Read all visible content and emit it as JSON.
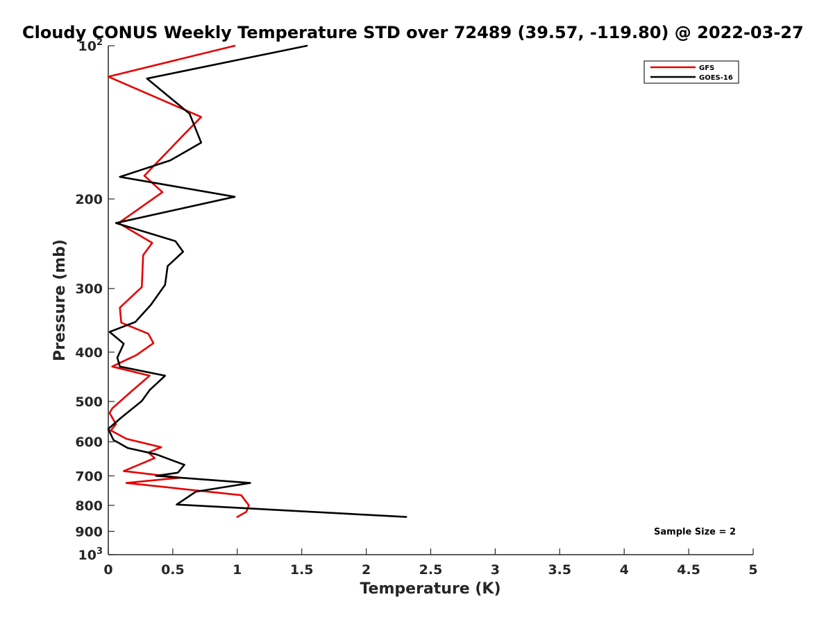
{
  "chart_data": {
    "type": "line",
    "title": "Cloudy CONUS Weekly Temperature STD over 72489 (39.57, -119.80) @ 2022-03-27",
    "xlabel": "Temperature (K)",
    "ylabel": "Pressure (mb)",
    "xlim": [
      0,
      5
    ],
    "ylim": [
      100,
      1000
    ],
    "yscale": "log",
    "y_reversed": true,
    "xticks": [
      "0",
      "0.5",
      "1",
      "1.5",
      "2",
      "2.5",
      "3",
      "3.5",
      "4",
      "4.5",
      "5"
    ],
    "xtick_values": [
      0,
      0.5,
      1,
      1.5,
      2,
      2.5,
      3,
      3.5,
      4,
      4.5,
      5
    ],
    "yticks": [
      {
        "value": 100,
        "base": "10",
        "exp": "2"
      },
      {
        "value": 200,
        "label": "200"
      },
      {
        "value": 300,
        "label": "300"
      },
      {
        "value": 400,
        "label": "400"
      },
      {
        "value": 500,
        "label": "500"
      },
      {
        "value": 600,
        "label": "600"
      },
      {
        "value": 700,
        "label": "700"
      },
      {
        "value": 800,
        "label": "800"
      },
      {
        "value": 900,
        "label": "900"
      },
      {
        "value": 1000,
        "base": "10",
        "exp": "3"
      }
    ],
    "grid": false,
    "legend_position": "top-right",
    "annotation": "Sample Size = 2",
    "series": [
      {
        "name": "GFS",
        "color": "#e60000",
        "points": [
          [
            0.98,
            100
          ],
          [
            0.0,
            115
          ],
          [
            0.72,
            138
          ],
          [
            0.58,
            150
          ],
          [
            0.28,
            180
          ],
          [
            0.42,
            194
          ],
          [
            0.08,
            223
          ],
          [
            0.34,
            244
          ],
          [
            0.27,
            258
          ],
          [
            0.26,
            298
          ],
          [
            0.09,
            327
          ],
          [
            0.1,
            350
          ],
          [
            0.31,
            368
          ],
          [
            0.35,
            384
          ],
          [
            0.22,
            405
          ],
          [
            0.03,
            427
          ],
          [
            0.32,
            445
          ],
          [
            0.17,
            480
          ],
          [
            0.03,
            516
          ],
          [
            0.01,
            527
          ],
          [
            0.06,
            554
          ],
          [
            0.02,
            570
          ],
          [
            0.14,
            592
          ],
          [
            0.41,
            615
          ],
          [
            0.31,
            630
          ],
          [
            0.36,
            646
          ],
          [
            0.12,
            685
          ],
          [
            0.56,
            706
          ],
          [
            0.14,
            723
          ],
          [
            1.03,
            764
          ],
          [
            1.09,
            800
          ],
          [
            1.07,
            824
          ],
          [
            1.0,
            843
          ]
        ]
      },
      {
        "name": "GOES-16",
        "color": "#000000",
        "points": [
          [
            1.54,
            100
          ],
          [
            0.3,
            116
          ],
          [
            0.63,
            136
          ],
          [
            0.72,
            155
          ],
          [
            0.48,
            168
          ],
          [
            0.09,
            181
          ],
          [
            0.98,
            198
          ],
          [
            0.06,
            223
          ],
          [
            0.52,
            242
          ],
          [
            0.58,
            254
          ],
          [
            0.46,
            271
          ],
          [
            0.44,
            295
          ],
          [
            0.33,
            323
          ],
          [
            0.21,
            349
          ],
          [
            0.01,
            365
          ],
          [
            0.12,
            385
          ],
          [
            0.07,
            410
          ],
          [
            0.09,
            427
          ],
          [
            0.44,
            445
          ],
          [
            0.32,
            475
          ],
          [
            0.26,
            499
          ],
          [
            0.1,
            538
          ],
          [
            0.0,
            566
          ],
          [
            0.04,
            595
          ],
          [
            0.15,
            617
          ],
          [
            0.37,
            635
          ],
          [
            0.59,
            666
          ],
          [
            0.54,
            690
          ],
          [
            0.37,
            700
          ],
          [
            1.1,
            723
          ],
          [
            0.68,
            752
          ],
          [
            0.53,
            797
          ],
          [
            2.31,
            843
          ]
        ]
      }
    ]
  }
}
